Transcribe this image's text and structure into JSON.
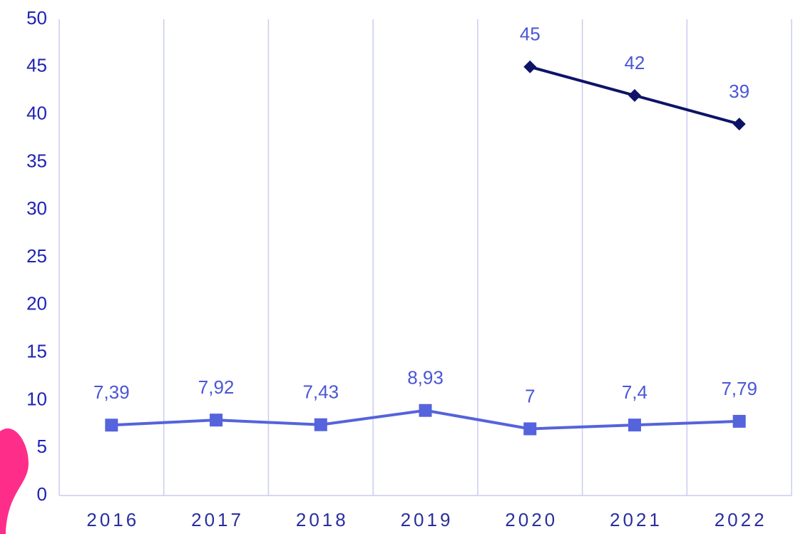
{
  "chart_data": {
    "type": "line",
    "categories": [
      "2016",
      "2017",
      "2018",
      "2019",
      "2020",
      "2021",
      "2022"
    ],
    "series": [
      {
        "color": "#5563dc",
        "marker": "square",
        "values": [
          7.39,
          7.92,
          7.43,
          8.93,
          7,
          7.4,
          7.79
        ],
        "value_labels": [
          "7,39",
          "7,92",
          "7,43",
          "8,93",
          "7",
          "7,4",
          "7,79"
        ]
      },
      {
        "color": "#0d1466",
        "marker": "diamond",
        "values": [
          null,
          null,
          null,
          null,
          45,
          42,
          39
        ]
      }
    ],
    "ylim": [
      0,
      50
    ],
    "yticks": [
      0,
      5,
      10,
      15,
      20,
      25,
      30,
      35,
      40,
      45,
      50
    ],
    "grid": true
  }
}
